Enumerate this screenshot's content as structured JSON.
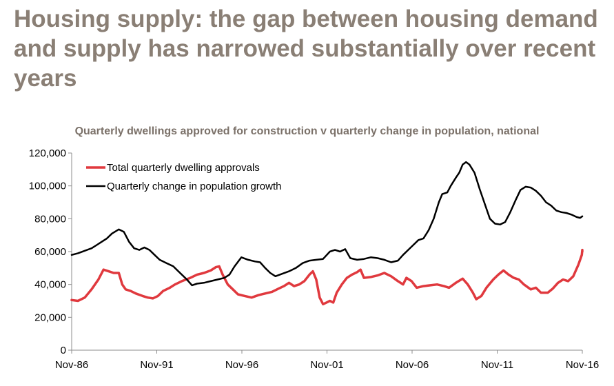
{
  "page": {
    "headline": "Housing supply: the gap between housing demand and supply has narrowed substantially over recent years"
  },
  "chart_data": {
    "type": "line",
    "title": "Quarterly dwellings approved for construction v quarterly change in population, national",
    "xlabel": "",
    "ylabel": "",
    "x_ticks": [
      "Nov-86",
      "Nov-91",
      "Nov-96",
      "Nov-01",
      "Nov-06",
      "Nov-11",
      "Nov-16"
    ],
    "x_range": [
      1986.83,
      2016.83
    ],
    "ylim": [
      0,
      120000
    ],
    "y_ticks": [
      0,
      20000,
      40000,
      60000,
      80000,
      100000,
      120000
    ],
    "y_tick_labels": [
      "0",
      "20,000",
      "40,000",
      "60,000",
      "80,000",
      "100,000",
      "120,000"
    ],
    "grid": false,
    "legend_position": "top-left",
    "series": [
      {
        "name": "Total quarterly dwelling approvals",
        "color": "#e0393e",
        "points": [
          [
            1986.8,
            30500
          ],
          [
            1987.2,
            30000
          ],
          [
            1987.6,
            32000
          ],
          [
            1988.0,
            37000
          ],
          [
            1988.4,
            43000
          ],
          [
            1988.7,
            49000
          ],
          [
            1989.0,
            48000
          ],
          [
            1989.3,
            47000
          ],
          [
            1989.6,
            47000
          ],
          [
            1989.8,
            40000
          ],
          [
            1990.0,
            37000
          ],
          [
            1990.3,
            36000
          ],
          [
            1990.6,
            34500
          ],
          [
            1991.0,
            33000
          ],
          [
            1991.3,
            32000
          ],
          [
            1991.6,
            31500
          ],
          [
            1991.9,
            33000
          ],
          [
            1992.2,
            36000
          ],
          [
            1992.6,
            38000
          ],
          [
            1992.9,
            40000
          ],
          [
            1993.3,
            42000
          ],
          [
            1993.8,
            44000
          ],
          [
            1994.2,
            46000
          ],
          [
            1994.6,
            47000
          ],
          [
            1995.0,
            48500
          ],
          [
            1995.3,
            50500
          ],
          [
            1995.5,
            51000
          ],
          [
            1995.7,
            46000
          ],
          [
            1996.0,
            40000
          ],
          [
            1996.3,
            37000
          ],
          [
            1996.6,
            34000
          ],
          [
            1997.0,
            33000
          ],
          [
            1997.4,
            32000
          ],
          [
            1997.8,
            33500
          ],
          [
            1998.2,
            34500
          ],
          [
            1998.6,
            35500
          ],
          [
            1999.0,
            37500
          ],
          [
            1999.3,
            39000
          ],
          [
            1999.6,
            41000
          ],
          [
            1999.9,
            39000
          ],
          [
            2000.2,
            40000
          ],
          [
            2000.5,
            42000
          ],
          [
            2000.8,
            46000
          ],
          [
            2001.0,
            48000
          ],
          [
            2001.2,
            43000
          ],
          [
            2001.4,
            32000
          ],
          [
            2001.6,
            28000
          ],
          [
            2001.8,
            29000
          ],
          [
            2002.0,
            30000
          ],
          [
            2002.2,
            29000
          ],
          [
            2002.4,
            35000
          ],
          [
            2002.7,
            40000
          ],
          [
            2003.0,
            44000
          ],
          [
            2003.3,
            46000
          ],
          [
            2003.6,
            47500
          ],
          [
            2003.8,
            49000
          ],
          [
            2004.0,
            44000
          ],
          [
            2004.4,
            44500
          ],
          [
            2004.8,
            45500
          ],
          [
            2005.2,
            47000
          ],
          [
            2005.6,
            45000
          ],
          [
            2006.0,
            42000
          ],
          [
            2006.3,
            40000
          ],
          [
            2006.5,
            44000
          ],
          [
            2006.8,
            42000
          ],
          [
            2007.1,
            38000
          ],
          [
            2007.5,
            39000
          ],
          [
            2007.9,
            39500
          ],
          [
            2008.3,
            40000
          ],
          [
            2008.7,
            39000
          ],
          [
            2009.0,
            38000
          ],
          [
            2009.4,
            41000
          ],
          [
            2009.8,
            43500
          ],
          [
            2010.1,
            40000
          ],
          [
            2010.4,
            35000
          ],
          [
            2010.6,
            31000
          ],
          [
            2010.9,
            33000
          ],
          [
            2011.2,
            38000
          ],
          [
            2011.6,
            43000
          ],
          [
            2011.9,
            46000
          ],
          [
            2012.2,
            48500
          ],
          [
            2012.5,
            46000
          ],
          [
            2012.8,
            44000
          ],
          [
            2013.1,
            43000
          ],
          [
            2013.4,
            40000
          ],
          [
            2013.8,
            37000
          ],
          [
            2014.1,
            38000
          ],
          [
            2014.4,
            35000
          ],
          [
            2014.8,
            35000
          ],
          [
            2015.1,
            37500
          ],
          [
            2015.4,
            41000
          ],
          [
            2015.7,
            43000
          ],
          [
            2016.0,
            42000
          ],
          [
            2016.3,
            45000
          ],
          [
            2016.6,
            52000
          ],
          [
            2016.8,
            58000
          ],
          [
            2016.9,
            61000
          ],
          [
            2017.0,
            60000
          ]
        ]
      },
      {
        "name": "Quarterly change in population growth",
        "color": "#000000",
        "points": [
          [
            1986.8,
            58000
          ],
          [
            1987.2,
            59000
          ],
          [
            1987.6,
            60500
          ],
          [
            1988.0,
            62000
          ],
          [
            1988.3,
            64000
          ],
          [
            1988.6,
            66000
          ],
          [
            1988.9,
            68000
          ],
          [
            1989.2,
            71000
          ],
          [
            1989.6,
            73500
          ],
          [
            1989.9,
            72000
          ],
          [
            1990.2,
            66000
          ],
          [
            1990.5,
            62000
          ],
          [
            1990.8,
            61000
          ],
          [
            1991.1,
            62500
          ],
          [
            1991.4,
            61000
          ],
          [
            1991.7,
            58000
          ],
          [
            1992.0,
            55000
          ],
          [
            1992.4,
            53000
          ],
          [
            1992.8,
            51000
          ],
          [
            1993.2,
            47000
          ],
          [
            1993.6,
            43000
          ],
          [
            1993.9,
            39500
          ],
          [
            1994.2,
            40500
          ],
          [
            1994.6,
            41000
          ],
          [
            1995.0,
            42000
          ],
          [
            1995.4,
            43000
          ],
          [
            1995.8,
            44000
          ],
          [
            1996.1,
            46000
          ],
          [
            1996.4,
            51000
          ],
          [
            1996.8,
            56500
          ],
          [
            1997.2,
            55000
          ],
          [
            1997.6,
            54000
          ],
          [
            1997.9,
            53500
          ],
          [
            1998.2,
            50000
          ],
          [
            1998.5,
            47000
          ],
          [
            1998.8,
            45000
          ],
          [
            1999.2,
            46500
          ],
          [
            1999.6,
            48000
          ],
          [
            2000.0,
            50000
          ],
          [
            2000.4,
            53000
          ],
          [
            2000.8,
            54500
          ],
          [
            2001.2,
            55000
          ],
          [
            2001.6,
            55500
          ],
          [
            2002.0,
            60000
          ],
          [
            2002.3,
            61000
          ],
          [
            2002.6,
            60000
          ],
          [
            2002.9,
            61500
          ],
          [
            2003.2,
            56000
          ],
          [
            2003.6,
            55000
          ],
          [
            2004.0,
            55500
          ],
          [
            2004.4,
            56500
          ],
          [
            2004.8,
            56000
          ],
          [
            2005.2,
            55000
          ],
          [
            2005.6,
            53500
          ],
          [
            2006.0,
            54500
          ],
          [
            2006.3,
            58000
          ],
          [
            2006.6,
            61000
          ],
          [
            2006.9,
            64000
          ],
          [
            2007.2,
            67000
          ],
          [
            2007.5,
            68000
          ],
          [
            2007.8,
            73000
          ],
          [
            2008.1,
            80000
          ],
          [
            2008.4,
            90000
          ],
          [
            2008.6,
            95000
          ],
          [
            2008.9,
            96000
          ],
          [
            2009.1,
            100000
          ],
          [
            2009.4,
            105000
          ],
          [
            2009.6,
            108000
          ],
          [
            2009.8,
            113000
          ],
          [
            2010.0,
            114500
          ],
          [
            2010.2,
            113000
          ],
          [
            2010.5,
            108000
          ],
          [
            2010.8,
            98000
          ],
          [
            2011.1,
            89000
          ],
          [
            2011.4,
            80000
          ],
          [
            2011.7,
            77000
          ],
          [
            2012.0,
            76500
          ],
          [
            2012.3,
            78000
          ],
          [
            2012.6,
            84000
          ],
          [
            2012.9,
            91000
          ],
          [
            2013.2,
            97500
          ],
          [
            2013.5,
            99500
          ],
          [
            2013.8,
            99000
          ],
          [
            2014.1,
            97000
          ],
          [
            2014.4,
            94000
          ],
          [
            2014.7,
            90000
          ],
          [
            2015.0,
            88000
          ],
          [
            2015.3,
            85000
          ],
          [
            2015.6,
            84000
          ],
          [
            2015.9,
            83500
          ],
          [
            2016.2,
            82500
          ],
          [
            2016.5,
            81000
          ],
          [
            2016.7,
            80500
          ],
          [
            2016.83,
            81500
          ]
        ]
      }
    ]
  }
}
